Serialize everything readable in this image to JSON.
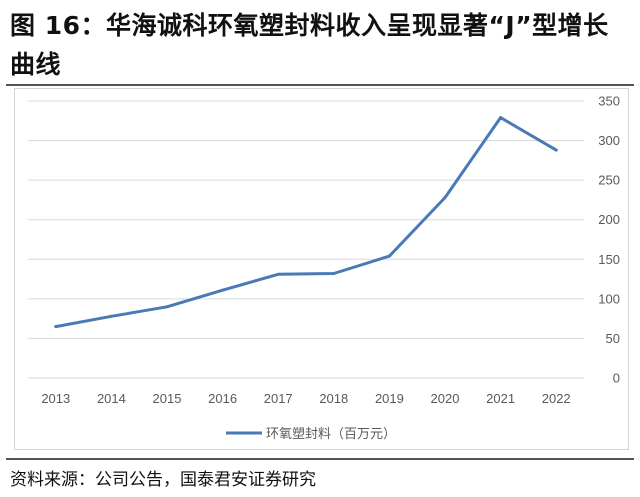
{
  "title": "图 16：华海诚科环氧塑封料收入呈现显著“J”型增长曲线",
  "source": "资料来源：公司公告，国泰君安证券研究",
  "colors": {
    "line": "#4a7ab5",
    "grid": "#d9d9d9",
    "axis_text": "#595959"
  },
  "chart_data": {
    "type": "line",
    "categories": [
      "2013",
      "2014",
      "2015",
      "2016",
      "2017",
      "2018",
      "2019",
      "2020",
      "2021",
      "2022"
    ],
    "series": [
      {
        "name": "环氧塑封料（百万元）",
        "values": [
          65,
          78,
          90,
          111,
          131,
          132,
          154,
          228,
          329,
          288
        ]
      }
    ],
    "ylim": [
      0,
      350
    ],
    "yticks": [
      "0",
      "50",
      "100",
      "150",
      "200",
      "250",
      "300",
      "350"
    ],
    "grid": true,
    "legend_position": "bottom-center"
  }
}
